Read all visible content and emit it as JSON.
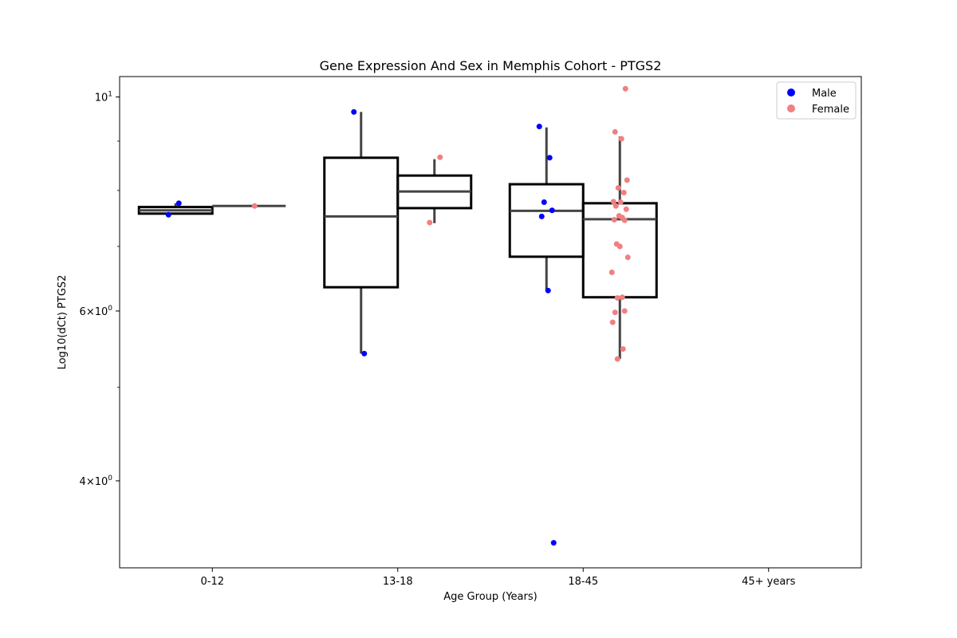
{
  "chart_data": {
    "type": "box",
    "title": "Gene Expression And Sex in Memphis Cohort - PTGS2",
    "xlabel": "Age Group (Years)",
    "ylabel": "Log10(dCt) PTGS2",
    "y_scale": "log",
    "ylim": [
      3.25,
      10.5
    ],
    "categories": [
      "0-12",
      "13-18",
      "18-45",
      "45+ years"
    ],
    "y_ticks": [
      {
        "value": 4,
        "base": "4",
        "sup": "0"
      },
      {
        "value": 6,
        "base": "6",
        "sup": "0"
      },
      {
        "value": 10,
        "base": "10",
        "sup": "1"
      }
    ],
    "legend": {
      "position": "top-right",
      "entries": [
        {
          "label": "Male",
          "color": "#0000ff"
        },
        {
          "label": "Female",
          "color": "#f08080"
        }
      ]
    },
    "series": [
      {
        "name": "Male",
        "color": "#0000ff",
        "boxes": [
          {
            "category": "0-12",
            "whisker_low": 7.55,
            "q1": 7.57,
            "median": 7.63,
            "q3": 7.69,
            "whisker_high": 7.76
          },
          {
            "category": "13-18",
            "whisker_low": 5.42,
            "q1": 6.35,
            "median": 7.52,
            "q3": 8.65,
            "whisker_high": 9.65
          },
          {
            "category": "18-45",
            "whisker_low": 6.3,
            "q1": 6.83,
            "median": 7.62,
            "q3": 8.12,
            "whisker_high": 9.3
          }
        ],
        "points": [
          {
            "category": "0-12",
            "values": [
              7.55,
              7.76
            ]
          },
          {
            "category": "13-18",
            "values": [
              9.65,
              5.42
            ]
          },
          {
            "category": "18-45",
            "values": [
              9.32,
              8.65,
              7.78,
              7.63,
              7.52,
              6.3,
              3.45
            ]
          }
        ]
      },
      {
        "name": "Female",
        "color": "#f08080",
        "boxes": [
          {
            "category": "0-12",
            "whisker_low": 7.71,
            "q1": 7.71,
            "median": 7.71,
            "q3": 7.71,
            "whisker_high": 7.71
          },
          {
            "category": "13-18",
            "whisker_low": 7.4,
            "q1": 7.67,
            "median": 7.98,
            "q3": 8.29,
            "whisker_high": 8.62
          },
          {
            "category": "18-45",
            "whisker_low": 5.35,
            "q1": 6.2,
            "median": 7.47,
            "q3": 7.76,
            "whisker_high": 9.1
          }
        ],
        "points": [
          {
            "category": "0-12",
            "values": [
              7.71
            ]
          },
          {
            "category": "13-18",
            "values": [
              8.66,
              7.41
            ]
          },
          {
            "category": "18-45",
            "values": [
              10.2,
              9.2,
              9.05,
              8.2,
              8.05,
              7.96,
              7.79,
              7.78,
              7.71,
              7.65,
              7.53,
              7.5,
              7.46,
              7.45,
              7.04,
              7.0,
              6.82,
              6.58,
              6.2,
              6.19,
              6.0,
              5.98,
              5.84,
              5.48,
              5.35
            ]
          }
        ]
      }
    ]
  }
}
